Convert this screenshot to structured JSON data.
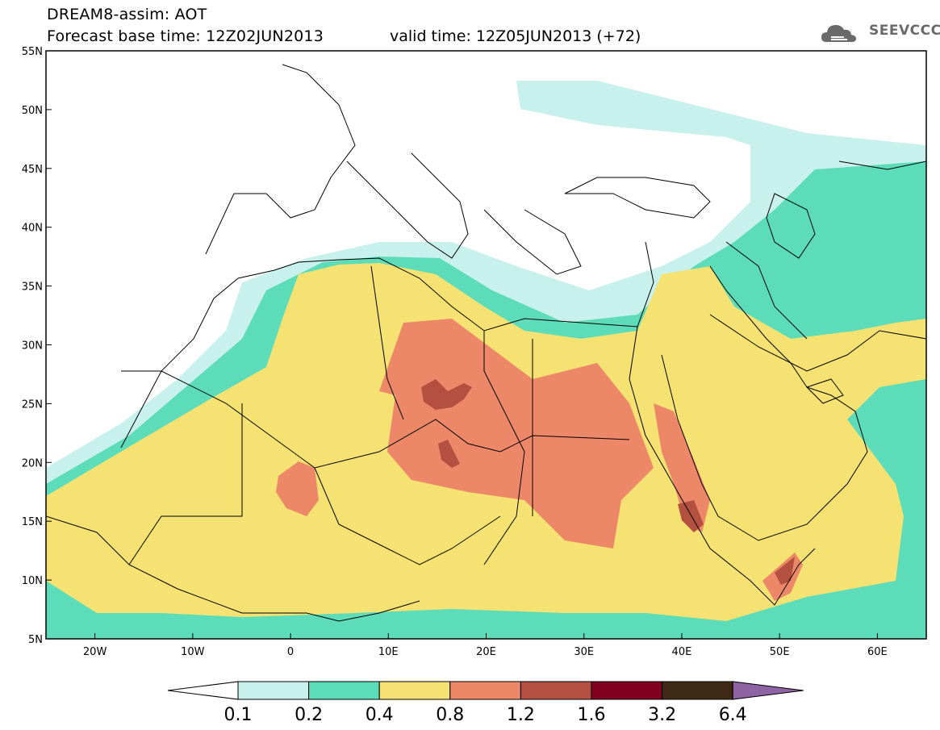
{
  "header": {
    "title": "DREAM8-assim: AOT",
    "base_time": "Forecast base time: 12Z02JUN2013",
    "valid_time": "valid time: 12Z05JUN2013 (+72)"
  },
  "logo": {
    "text": "SEEVCCC",
    "icon": "cloud-logo-icon"
  },
  "map": {
    "lat_ticks": [
      "55N",
      "50N",
      "45N",
      "40N",
      "35N",
      "30N",
      "25N",
      "20N",
      "15N",
      "10N",
      "5N"
    ],
    "lon_ticks": [
      "20W",
      "10W",
      "0",
      "10E",
      "20E",
      "30E",
      "40E",
      "50E",
      "60E"
    ],
    "lat_range": [
      5,
      55
    ],
    "lon_range": [
      -25,
      65
    ]
  },
  "colorbar": {
    "labels": [
      "0.1",
      "0.2",
      "0.4",
      "0.8",
      "1.2",
      "1.6",
      "3.2",
      "6.4"
    ],
    "colors": [
      "#c8f0ec",
      "#5cdcb8",
      "#f5e272",
      "#ec8868",
      "#b3503f",
      "#800020",
      "#3e2a14",
      "#8e64a4"
    ],
    "under_color": "#ffffff"
  },
  "colors": {
    "c01": "#c8f0ec",
    "c02": "#5cdcb8",
    "c04": "#f5e272",
    "c08": "#ec8868",
    "c12": "#b3503f",
    "border": "#000000"
  }
}
